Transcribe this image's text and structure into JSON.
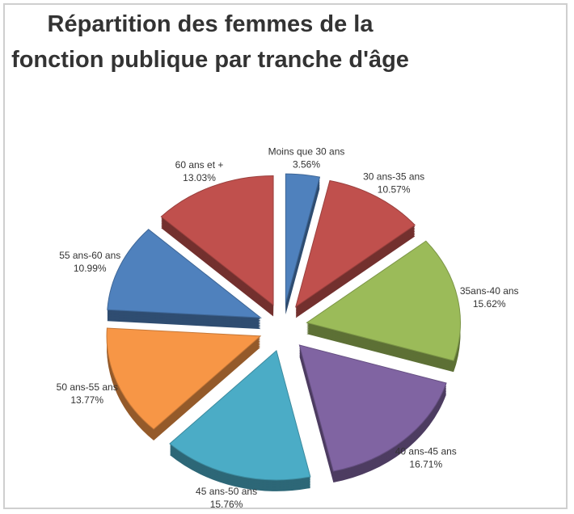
{
  "chart_data": {
    "type": "pie",
    "title": "Répartition des femmes de la fonction publique par tranche d'âge",
    "categories": [
      "Moins que 30 ans",
      "30 ans-35 ans",
      "35ans-40 ans",
      "40 ans-45 ans",
      "45 ans-50 ans",
      "50 ans-55 ans",
      "55 ans-60 ans",
      "60 ans et +"
    ],
    "values": [
      3.56,
      10.57,
      15.62,
      16.71,
      15.76,
      13.77,
      10.99,
      13.03
    ],
    "value_labels": [
      "3.56%",
      "10.57%",
      "15.62%",
      "16.71%",
      "15.76%",
      "13.77%",
      "10.99%",
      "13.03%"
    ],
    "colors": [
      "#4f81bd",
      "#c0504d",
      "#9bbb59",
      "#8064a2",
      "#4bacc6",
      "#f79646",
      "#4f81bd",
      "#c0504d"
    ]
  }
}
